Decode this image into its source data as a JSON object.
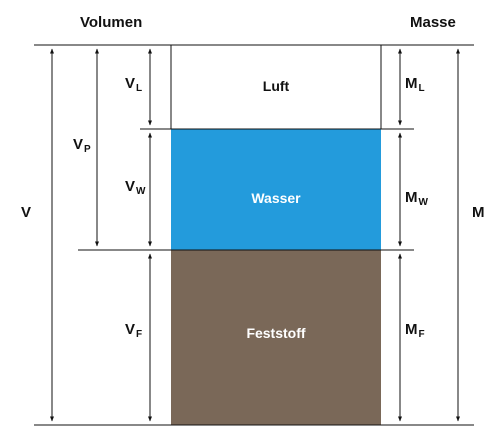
{
  "headers": {
    "volume": "Volumen",
    "mass": "Masse"
  },
  "phases": {
    "air": {
      "label": "Luft",
      "color": "#ffffff",
      "text_color": "#111111"
    },
    "water": {
      "label": "Wasser",
      "color": "#239bdc",
      "text_color": "#ffffff"
    },
    "solid": {
      "label": "Feststoff",
      "color": "#7a6858",
      "text_color": "#ffffff"
    }
  },
  "volume_symbols": {
    "total": "V",
    "pores": {
      "main": "V",
      "sub": "P"
    },
    "air": {
      "main": "V",
      "sub": "L"
    },
    "water": {
      "main": "V",
      "sub": "W"
    },
    "solid": {
      "main": "V",
      "sub": "F"
    }
  },
  "mass_symbols": {
    "total": "M",
    "air": {
      "main": "M",
      "sub": "L"
    },
    "water": {
      "main": "M",
      "sub": "W"
    },
    "solid": {
      "main": "M",
      "sub": "F"
    }
  }
}
